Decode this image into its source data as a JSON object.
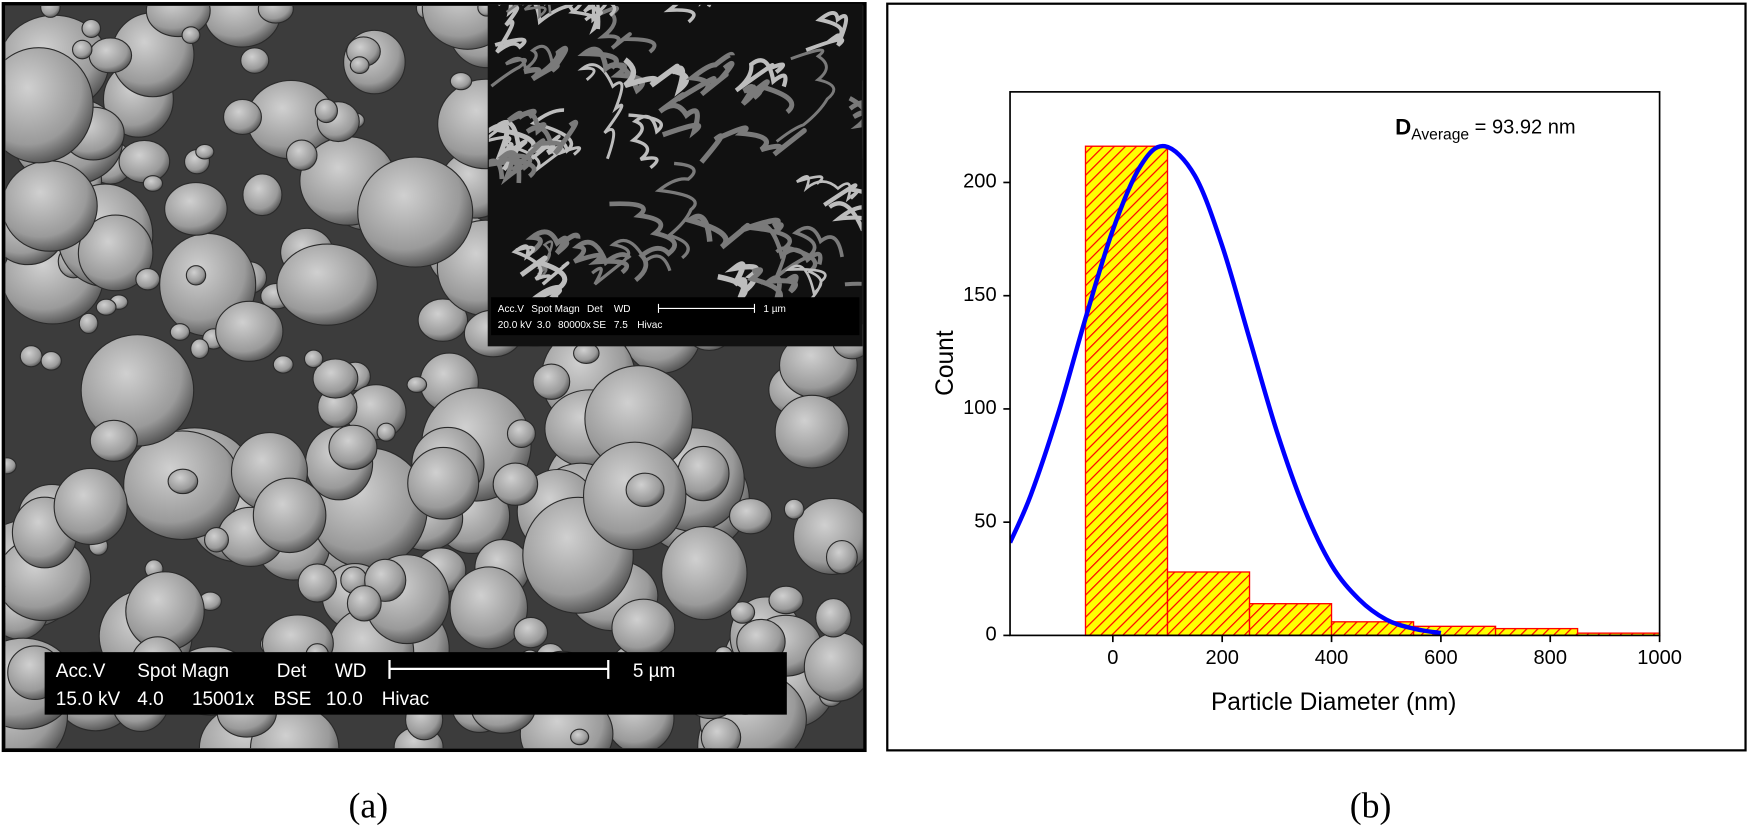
{
  "captions": [
    "(a)",
    "(b)"
  ],
  "micrograph": {
    "header": [
      "Acc.V",
      "Spot Magn",
      "Det",
      "WD"
    ],
    "values": [
      "15.0 kV",
      "4.0",
      "15001x",
      "BSE",
      "10.0",
      "Hivac"
    ],
    "scale_bar": "5 µm"
  },
  "inset": {
    "header": [
      "Acc.V",
      "Spot Magn",
      "Det",
      "WD"
    ],
    "values": [
      "20.0 kV",
      "3.0",
      "80000x",
      "SE",
      "7.5",
      "Hivac"
    ],
    "scale_bar": "1 µm"
  },
  "chart_data": {
    "type": "histogram",
    "annotation": {
      "symbol": "D",
      "subscript": "Average",
      "text": "= 93.92 nm"
    },
    "xlabel": "Particle Diameter (nm)",
    "ylabel": "Count",
    "bins": [
      -50,
      100,
      250,
      400,
      550,
      700,
      850,
      1000
    ],
    "values": [
      216,
      28,
      14,
      6,
      4,
      3,
      1
    ],
    "color": "#ffff00",
    "edgecolor": "#ff0000",
    "hatch": true,
    "curve": {
      "type": "line",
      "color": "#0000ff",
      "x": [
        -188,
        -150,
        -100,
        -50,
        0,
        50,
        95,
        150,
        200,
        250,
        300,
        350,
        400,
        450,
        500,
        550,
        600
      ],
      "values": [
        41,
        62,
        98,
        140,
        179,
        207,
        216,
        203,
        172,
        131,
        90,
        56,
        31,
        16,
        7,
        3,
        1
      ]
    },
    "xlim": [
      -188,
      1000
    ],
    "xticks": [
      0,
      200,
      400,
      600,
      800,
      1000
    ],
    "ylim": [
      0,
      240
    ],
    "yticks": [
      0,
      50,
      100,
      150,
      200
    ],
    "grid": false
  }
}
